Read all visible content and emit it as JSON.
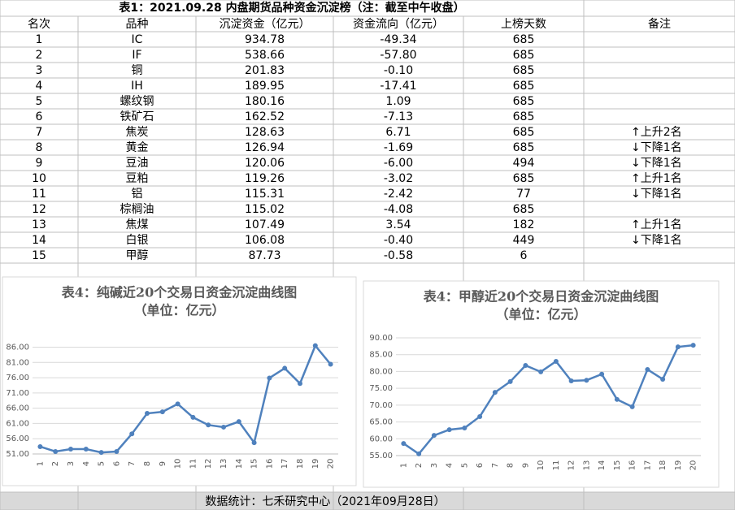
{
  "table": {
    "title": "表1：2021.09.28 内盘期货品种资金沉淀榜（注：截至中午收盘）",
    "header": [
      "名次",
      "品种",
      "沉淀资金（亿元）",
      "资金流向（亿元）",
      "上榜天数",
      "备注"
    ],
    "rows": [
      [
        "1",
        "IC",
        "934.78",
        "-49.34",
        "685"
      ],
      [
        "2",
        "IF",
        "538.66",
        "-57.80",
        "685"
      ],
      [
        "3",
        "铜",
        "201.83",
        "-0.10",
        "685"
      ],
      [
        "4",
        "IH",
        "189.95",
        "-17.41",
        "685"
      ],
      [
        "5",
        "螺纹钢",
        "180.16",
        "1.09",
        "685"
      ],
      [
        "6",
        "铁矿石",
        "162.52",
        "-7.13",
        "685"
      ],
      [
        "7",
        "焦炭",
        "128.63",
        "6.71",
        "685",
        "↑上升2名"
      ],
      [
        "8",
        "黄金",
        "126.94",
        "-1.69",
        "685",
        "↓下降1名"
      ],
      [
        "9",
        "豆油",
        "120.06",
        "-6.00",
        "494",
        "↓下降1名"
      ],
      [
        "10",
        "豆粕",
        "119.26",
        "-3.02",
        "685",
        "↑上升1名"
      ],
      [
        "11",
        "铝",
        "115.31",
        "-2.42",
        "77",
        "↓下降1名"
      ],
      [
        "12",
        "棕榈油",
        "115.02",
        "-4.08",
        "685"
      ],
      [
        "13",
        "焦煤",
        "107.49",
        "3.54",
        "182",
        "↑上升1名"
      ],
      [
        "14",
        "白银",
        "106.08",
        "-0.40",
        "449",
        "↓下降1名"
      ],
      [
        "15",
        "甲醇",
        "87.73",
        "-0.58",
        "6"
      ]
    ],
    "footer": "数据统计：七禾研究中心（2021年09月28日）"
  },
  "chart_data": [
    {
      "type": "line",
      "title": "表4：纯碱近20个交易日资金沉淀曲线图",
      "subtitle": "（单位：亿元）",
      "categories": [
        "1",
        "2",
        "3",
        "4",
        "5",
        "6",
        "7",
        "8",
        "9",
        "10",
        "11",
        "12",
        "13",
        "14",
        "15",
        "16",
        "17",
        "18",
        "19",
        "20"
      ],
      "values": [
        53.4,
        51.8,
        52.6,
        52.6,
        51.5,
        51.8,
        57.6,
        64.3,
        64.8,
        67.4,
        63.0,
        60.5,
        59.8,
        61.6,
        54.7,
        75.9,
        79.1,
        74.1,
        86.5,
        80.4
      ],
      "color": "#4f81bd",
      "ylim": [
        51,
        88
      ],
      "yticks": [
        {
          "value": 51,
          "label": "51.00"
        },
        {
          "value": 56,
          "label": "56.00"
        },
        {
          "value": 61,
          "label": "61.00"
        },
        {
          "value": 66,
          "label": "66.00"
        },
        {
          "value": 71,
          "label": "71.00"
        },
        {
          "value": 76,
          "label": "76.00"
        },
        {
          "value": 81,
          "label": "81.00"
        },
        {
          "value": 86,
          "label": "86.00"
        }
      ],
      "grid": true
    },
    {
      "type": "line",
      "title": "表4：甲醇近20个交易日资金沉淀曲线图",
      "subtitle": "（单位：亿元）",
      "categories": [
        "1",
        "2",
        "3",
        "4",
        "5",
        "6",
        "7",
        "8",
        "9",
        "10",
        "11",
        "12",
        "13",
        "14",
        "15",
        "16",
        "17",
        "18",
        "19",
        "20"
      ],
      "values": [
        58.6,
        55.5,
        61.0,
        62.7,
        63.2,
        66.6,
        73.8,
        77.0,
        81.8,
        79.9,
        83.0,
        77.2,
        77.4,
        79.2,
        71.7,
        69.5,
        80.6,
        77.7,
        87.3,
        87.8
      ],
      "color": "#4f81bd",
      "ylim": [
        55,
        90
      ],
      "yticks": [
        {
          "value": 55,
          "label": "55.00"
        },
        {
          "value": 60,
          "label": "60.00"
        },
        {
          "value": 65,
          "label": "65.00"
        },
        {
          "value": 70,
          "label": "70.00"
        },
        {
          "value": 75,
          "label": "75.00"
        },
        {
          "value": 80,
          "label": "80.00"
        },
        {
          "value": 85,
          "label": "85.00"
        },
        {
          "value": 90,
          "label": "90.00"
        }
      ],
      "grid": true
    }
  ]
}
